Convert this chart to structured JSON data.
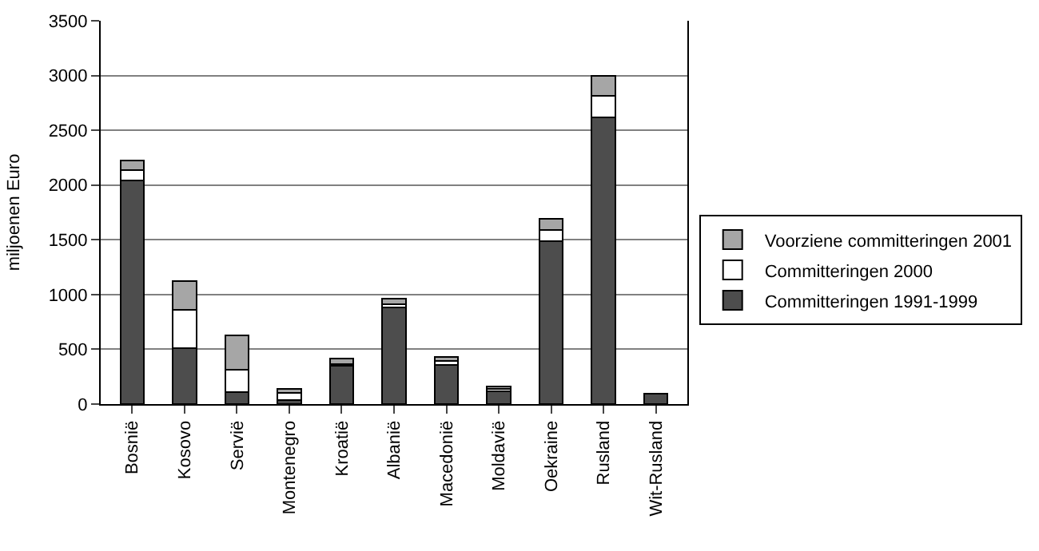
{
  "chart_data": {
    "type": "bar",
    "stacked": true,
    "ylabel": "miljoenen Euro",
    "categories": [
      "Bosnië",
      "Kosovo",
      "Servië",
      "Montenegro",
      "Kroatië",
      "Albanië",
      "Macedonië",
      "Moldavië",
      "Oekraine",
      "Rusland",
      "Wit-Rusland"
    ],
    "series": [
      {
        "name": "Committeringen 1991-1999",
        "color": "#4d4d4d",
        "values": [
          2040,
          510,
          110,
          35,
          350,
          885,
          355,
          115,
          1490,
          2615,
          95
        ]
      },
      {
        "name": "Committeringen 2000",
        "color": "#ffffff",
        "values": [
          100,
          350,
          205,
          65,
          15,
          30,
          40,
          20,
          100,
          200,
          null
        ]
      },
      {
        "name": "Voorziene committeringen 2001",
        "color": "#a6a6a6",
        "values": [
          85,
          260,
          315,
          40,
          50,
          45,
          35,
          25,
          100,
          185,
          null
        ]
      }
    ],
    "ylim": [
      0,
      3500
    ],
    "yticks": [
      0,
      500,
      1000,
      1500,
      2000,
      2500,
      3000,
      3500
    ],
    "grid": "y",
    "legend": "right"
  }
}
